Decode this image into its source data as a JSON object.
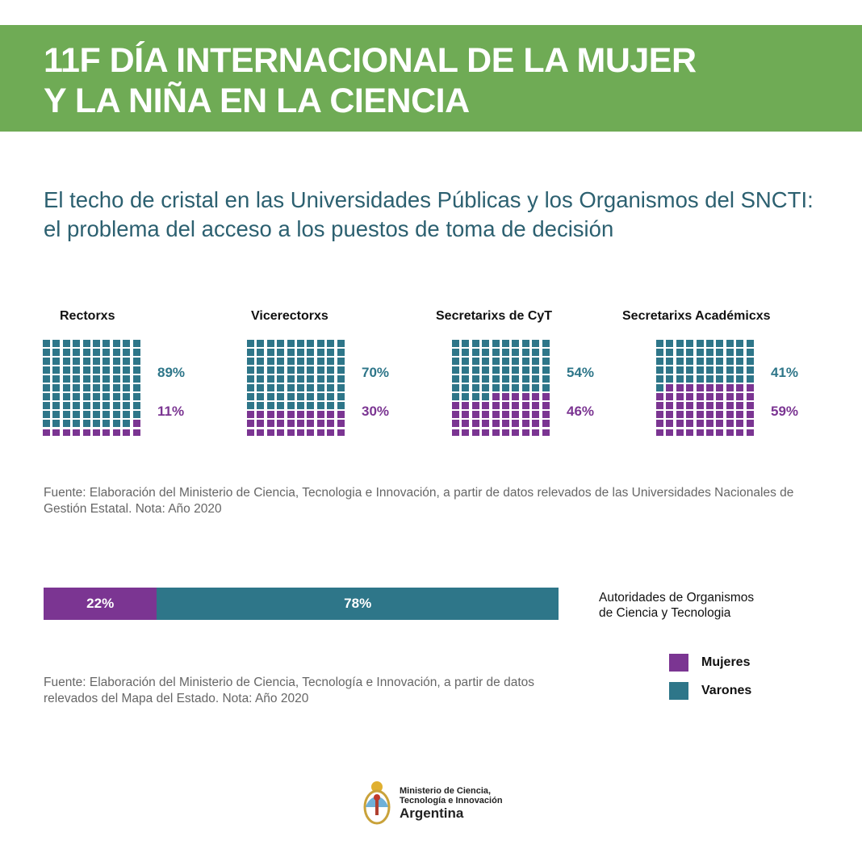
{
  "header": {
    "line1": "11F DÍA INTERNACIONAL DE LA MUJER",
    "line2": "Y LA NIÑA EN LA CIENCIA"
  },
  "subtitle": "El techo de cristal en las Universidades Públicas y los Organismos del SNCTI: el problema del acceso a los puestos de toma de decisión",
  "colors": {
    "header": "#6fab55",
    "varones": "#2e7689",
    "mujeres": "#7b3592"
  },
  "chart_data": [
    {
      "type": "waffle",
      "categories": [
        "Rectorxs",
        "Vicerectorxs",
        "Secretarixs de CyT",
        "Secretarixs Académicxs"
      ],
      "series": [
        {
          "name": "Varones",
          "values": [
            89,
            70,
            54,
            41
          ]
        },
        {
          "name": "Mujeres",
          "values": [
            11,
            30,
            46,
            59
          ]
        }
      ],
      "labels": {
        "varones": [
          "89%",
          "70%",
          "54%",
          "41%"
        ],
        "mujeres": [
          "11%",
          "30%",
          "46%",
          "59%"
        ]
      }
    },
    {
      "type": "bar",
      "title": "Autoridades de Organismos de Ciencia y Tecnologia",
      "series": [
        {
          "name": "Mujeres",
          "value": 22,
          "label": "22%"
        },
        {
          "name": "Varones",
          "value": 78,
          "label": "78%"
        }
      ]
    }
  ],
  "note1": "Fuente: Elaboración del Ministerio de Ciencia, Tecnologia e Innovación,  a partir de datos relevados de las Universidades Nacionales de Gestión Estatal. Nota: Año 2020",
  "note2": "Fuente: Elaboración del Ministerio de Ciencia, Tecnología e Innovación,  a partir de datos relevados del Mapa del Estado. Nota: Año 2020",
  "legend": {
    "title1": "Autoridades de Organismos",
    "title2": "de Ciencia y Tecnologia",
    "mujeres": "Mujeres",
    "varones": "Varones"
  },
  "logo": {
    "line1": "Ministerio de Ciencia,",
    "line2": "Tecnología e Innovación",
    "line3": "Argentina"
  }
}
